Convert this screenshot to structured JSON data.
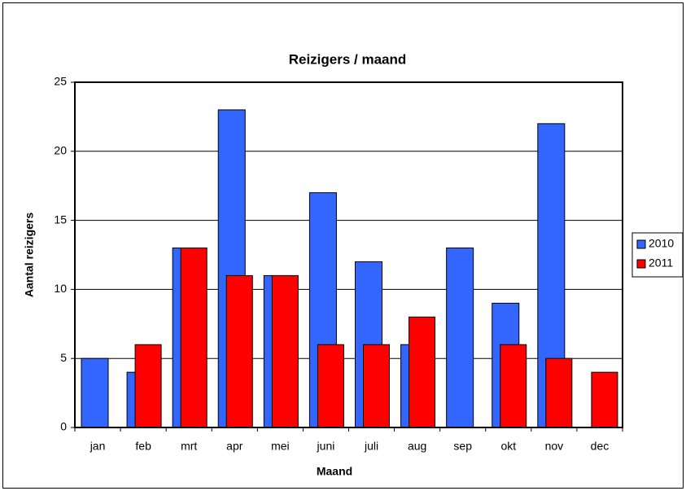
{
  "chart_data": {
    "type": "bar",
    "title": "Reizigers / maand",
    "x_label": "Maand",
    "y_label": "Aantal reizigers",
    "categories": [
      "jan",
      "feb",
      "mrt",
      "apr",
      "mei",
      "juni",
      "juli",
      "aug",
      "sep",
      "okt",
      "nov",
      "dec"
    ],
    "series": [
      {
        "name": "2010",
        "color": "#3366ff",
        "values": [
          5,
          4,
          13,
          23,
          11,
          17,
          12,
          6,
          13,
          9,
          22,
          0
        ]
      },
      {
        "name": "2011",
        "color": "#ff0000",
        "values": [
          0,
          6,
          13,
          11,
          11,
          6,
          6,
          8,
          0,
          6,
          5,
          4
        ]
      }
    ],
    "ylim": [
      0,
      25
    ],
    "yticks": [
      0,
      5,
      10,
      15,
      20,
      25
    ],
    "grid": true,
    "legend": "right"
  }
}
